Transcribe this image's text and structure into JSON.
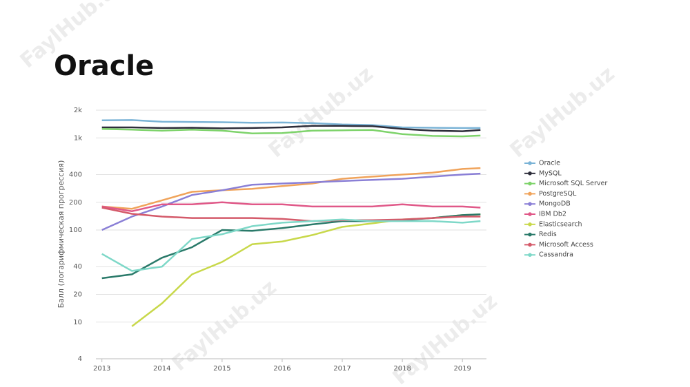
{
  "title": "Oracle",
  "watermark": "FaylHub.uz",
  "chart_data": {
    "type": "line",
    "y_label": "Балл (логарифмическая прогрессия)",
    "log_scale": true,
    "grid": true,
    "x": [
      2013,
      2013.5,
      2014,
      2014.5,
      2015,
      2015.5,
      2016,
      2016.5,
      2017,
      2017.5,
      2018,
      2018.5,
      2019,
      2019.3
    ],
    "xlim": [
      2012.9,
      2019.4
    ],
    "xticks": [
      2013,
      2014,
      2015,
      2016,
      2017,
      2018,
      2019
    ],
    "ylim": [
      4,
      2000
    ],
    "yticks": [
      4,
      10,
      20,
      40,
      100,
      200,
      400,
      {
        "value": 1000,
        "label": "1k"
      },
      {
        "value": 2000,
        "label": "2k"
      }
    ],
    "legend": "right",
    "series": [
      {
        "name": "Oracle",
        "color": "#7ab3d6",
        "values": [
          1550,
          1560,
          1500,
          1490,
          1480,
          1460,
          1470,
          1450,
          1400,
          1380,
          1300,
          1290,
          1280,
          1280
        ]
      },
      {
        "name": "MySQL",
        "color": "#2d2d3a",
        "values": [
          1300,
          1300,
          1280,
          1290,
          1270,
          1280,
          1300,
          1350,
          1350,
          1340,
          1250,
          1200,
          1180,
          1220
        ]
      },
      {
        "name": "Microsoft SQL Server",
        "color": "#7ed36b",
        "values": [
          1250,
          1230,
          1200,
          1230,
          1200,
          1120,
          1130,
          1200,
          1210,
          1220,
          1100,
          1050,
          1040,
          1060
        ]
      },
      {
        "name": "PostgreSQL",
        "color": "#f0a35a",
        "values": [
          180,
          170,
          210,
          260,
          270,
          280,
          300,
          320,
          360,
          380,
          400,
          420,
          460,
          470
        ]
      },
      {
        "name": "MongoDB",
        "color": "#8a7fd6",
        "values": [
          100,
          140,
          180,
          240,
          270,
          310,
          320,
          330,
          340,
          350,
          360,
          380,
          400,
          410
        ]
      },
      {
        "name": "IBM Db2",
        "color": "#e05888",
        "values": [
          180,
          160,
          190,
          190,
          200,
          190,
          190,
          180,
          180,
          180,
          190,
          180,
          180,
          175
        ]
      },
      {
        "name": "Elasticsearch",
        "color": "#c8d84a",
        "values": [
          null,
          9,
          16,
          33,
          45,
          70,
          75,
          88,
          108,
          118,
          130,
          135,
          145,
          148
        ]
      },
      {
        "name": "Redis",
        "color": "#2a7a6a",
        "values": [
          30,
          33,
          50,
          65,
          100,
          98,
          105,
          115,
          125,
          125,
          128,
          135,
          145,
          148
        ]
      },
      {
        "name": "Microsoft Access",
        "color": "#d45a6a",
        "values": [
          175,
          150,
          140,
          135,
          135,
          135,
          132,
          125,
          128,
          128,
          130,
          135,
          140,
          140
        ]
      },
      {
        "name": "Cassandra",
        "color": "#7ed8c8",
        "values": [
          55,
          36,
          40,
          80,
          90,
          110,
          120,
          125,
          130,
          125,
          125,
          125,
          120,
          125
        ]
      }
    ]
  }
}
